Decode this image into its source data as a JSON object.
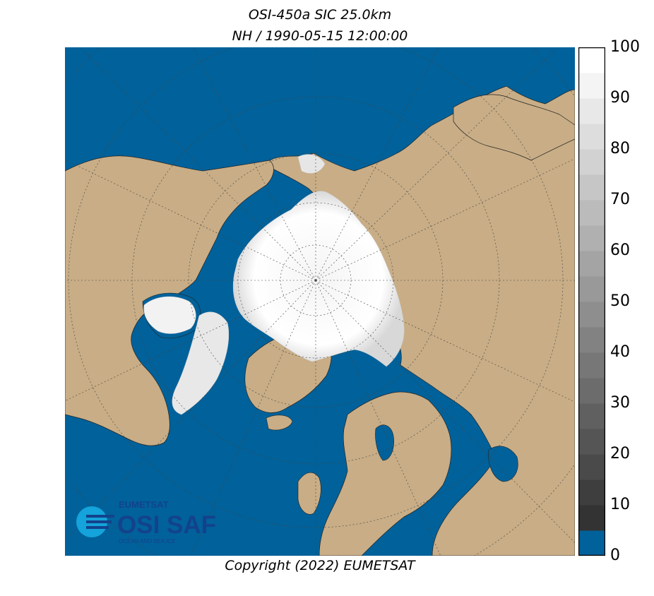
{
  "title": "OSI-450a SIC 25.0km",
  "subtitle": "NH / 1990-05-15 12:00:00",
  "copyright": "Copyright (2022)  EUMETSAT",
  "logo": {
    "brand": "EUMETSAT",
    "name": "OSI SAF",
    "tagline": "OCEAN AND SEA ICE"
  },
  "colors": {
    "ocean": "#01619a",
    "land": "#c8ad86",
    "ice_max": "#ffffff",
    "ice_min": "#333333",
    "grid": "#444444",
    "logo": "#13428b",
    "logo_accent": "#14a3db"
  },
  "colorbar": {
    "min": 0,
    "max": 100,
    "step": 5,
    "tick_labels": [
      "0",
      "10",
      "20",
      "30",
      "40",
      "50",
      "60",
      "70",
      "80",
      "90",
      "100"
    ],
    "tick_values": [
      0,
      10,
      20,
      30,
      40,
      50,
      60,
      70,
      80,
      90,
      100
    ]
  }
}
